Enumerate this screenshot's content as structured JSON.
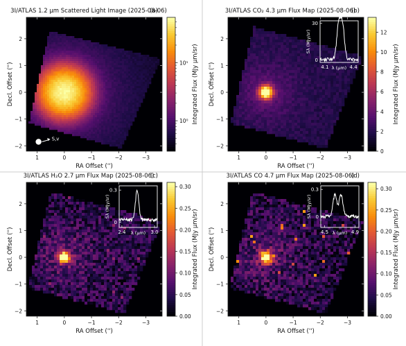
{
  "figure": {
    "panels": [
      {
        "title": "3I/ATLAS 1.2 μm Scattered Light Image (2025-08-06)",
        "tag": "(a)",
        "xlabel": "RA Offset ('')",
        "ylabel": "Decl. Offset ('')",
        "cbar_label": "Integrated Flux (MJy μm/sr)",
        "cbar_ticks": [
          "10¹",
          "10⁰"
        ],
        "annotation": "S,v",
        "inset": null
      },
      {
        "title": "3I/ATLAS CO₂ 4.3 μm Flux Map (2025-08-06)",
        "tag": "(b)",
        "xlabel": "RA Offset ('')",
        "ylabel": "Decl. Offset ('')",
        "cbar_label": "Integrated Flux (MJy μm/sr)",
        "cbar_ticks": [
          "12",
          "10",
          "8",
          "6",
          "4",
          "2",
          "0"
        ],
        "inset": {
          "xlabel": "λ (μm)",
          "ylabel": "Sλ (MJy/sr)",
          "xticks": [
            "4.1",
            "4.4"
          ],
          "yticks": [
            "30",
            "0"
          ]
        }
      },
      {
        "title": "3I/ATLAS H₂O 2.7 μm Flux Map (2025-08-06)",
        "tag": "(c)",
        "xlabel": "RA Offset ('')",
        "ylabel": "Decl. Offset ('')",
        "cbar_label": "Integrated Flux (MJy μm/sr)",
        "cbar_ticks": [
          "0.30",
          "0.25",
          "0.20",
          "0.15",
          "0.10",
          "0.05",
          "0.00"
        ],
        "inset": {
          "xlabel": "λ (μm)",
          "ylabel": "Sλ (MJy/sr)",
          "xticks": [
            "2.4",
            "3.0"
          ],
          "yticks": [
            "0.3",
            "0"
          ]
        }
      },
      {
        "title": "3I/ATLAS CO 4.7 μm Flux Map (2025-08-06)",
        "tag": "(d)",
        "xlabel": "RA Offset ('')",
        "ylabel": "Decl. Offset ('')",
        "cbar_label": "Integrated Flux (MJy μm/sr)",
        "cbar_ticks": [
          "0.30",
          "0.25",
          "0.20",
          "0.15",
          "0.10",
          "0.05",
          "0.00"
        ],
        "inset": {
          "xlabel": "λ (μm)",
          "ylabel": "Sλ (MJy/sr)",
          "xticks": [
            "4.5",
            "4.9"
          ],
          "yticks": [
            "0.3",
            "0"
          ]
        }
      }
    ]
  },
  "chart_data": [
    {
      "type": "heatmap",
      "title": "3I/ATLAS 1.2 μm Scattered Light Image (2025-08-06)",
      "xlabel": "RA Offset ('')",
      "ylabel": "Decl. Offset ('')",
      "x_ticks": [
        1,
        0,
        -1,
        -2,
        -3
      ],
      "y_ticks": [
        2,
        1,
        0,
        -1,
        -2
      ],
      "xlim": [
        1.4,
        -3.6
      ],
      "ylim": [
        -2.2,
        2.8
      ],
      "colorbar": {
        "label": "Integrated Flux (MJy μm/sr)",
        "scale": "log",
        "range": [
          0.3,
          60
        ],
        "ticks": [
          1,
          10
        ]
      },
      "colormap": "inferno",
      "peak_location": [
        0,
        0
      ],
      "footprint_corners": [
        [
          0.55,
          2.3
        ],
        [
          -3.55,
          1.25
        ],
        [
          -2.1,
          -2.1
        ],
        [
          1.3,
          -1.15
        ]
      ],
      "falloff_scale": 0.45,
      "noise": 0.04
    },
    {
      "type": "heatmap",
      "title": "3I/ATLAS CO₂ 4.3 μm Flux Map (2025-08-06)",
      "xlabel": "RA Offset ('')",
      "ylabel": "Decl. Offset ('')",
      "x_ticks": [
        1,
        0,
        -1,
        -2,
        -3
      ],
      "y_ticks": [
        2,
        1,
        0,
        -1,
        -2
      ],
      "xlim": [
        1.4,
        -3.6
      ],
      "ylim": [
        -2.2,
        2.8
      ],
      "colorbar": {
        "label": "Integrated Flux (MJy μm/sr)",
        "scale": "linear",
        "range": [
          0,
          13.5
        ],
        "ticks": [
          0,
          2,
          4,
          6,
          8,
          10,
          12
        ]
      },
      "colormap": "inferno",
      "peak_location": [
        0,
        0
      ],
      "footprint_corners": [
        [
          0.45,
          2.45
        ],
        [
          -3.55,
          1.35
        ],
        [
          -2.2,
          -2.1
        ],
        [
          1.3,
          -1.15
        ]
      ],
      "falloff_scale": 0.17,
      "noise": 0.08,
      "inset": {
        "type": "line",
        "xlabel": "λ (μm)",
        "ylabel": "Sλ (MJy/sr)",
        "xlim": [
          4.05,
          4.45
        ],
        "ylim": [
          -2,
          32
        ],
        "x_ticks": [
          4.1,
          4.4
        ],
        "y_ticks": [
          0,
          30
        ],
        "profile": "double-peak",
        "peak_centers": [
          4.245,
          4.285
        ],
        "peak_width": 0.02,
        "peak_height": 28,
        "baseline": 0.5
      }
    },
    {
      "type": "heatmap",
      "title": "3I/ATLAS H₂O 2.7 μm Flux Map (2025-08-06)",
      "xlabel": "RA Offset ('')",
      "ylabel": "Decl. Offset ('')",
      "x_ticks": [
        1,
        0,
        -1,
        -2,
        -3
      ],
      "y_ticks": [
        2,
        1,
        0,
        -1,
        -2
      ],
      "xlim": [
        1.4,
        -3.6
      ],
      "ylim": [
        -2.2,
        2.8
      ],
      "colorbar": {
        "label": "Integrated Flux (MJy μm/sr)",
        "scale": "linear",
        "range": [
          0,
          0.31
        ],
        "ticks": [
          0,
          0.05,
          0.1,
          0.15,
          0.2,
          0.25,
          0.3
        ]
      },
      "colormap": "inferno",
      "peak_location": [
        0,
        0
      ],
      "footprint_corners": [
        [
          0.5,
          2.45
        ],
        [
          -3.6,
          1.35
        ],
        [
          -2.2,
          -2.1
        ],
        [
          1.35,
          -1.15
        ]
      ],
      "falloff_scale": 0.14,
      "noise": 0.28,
      "inset": {
        "type": "line",
        "xlabel": "λ (μm)",
        "ylabel": "Sλ (MJy/sr)",
        "xlim": [
          2.35,
          3.05
        ],
        "ylim": [
          -0.05,
          0.34
        ],
        "x_ticks": [
          2.4,
          3.0
        ],
        "y_ticks": [
          0,
          0.3
        ],
        "profile": "single-peak",
        "peak_centers": [
          2.68
        ],
        "peak_width": 0.03,
        "peak_height": 0.28,
        "baseline": 0.02
      }
    },
    {
      "type": "heatmap",
      "title": "3I/ATLAS CO 4.7 μm Flux Map (2025-08-06)",
      "xlabel": "RA Offset ('')",
      "ylabel": "Decl. Offset ('')",
      "x_ticks": [
        1,
        0,
        -1,
        -2,
        -3
      ],
      "y_ticks": [
        2,
        1,
        0,
        -1,
        -2
      ],
      "xlim": [
        1.4,
        -3.6
      ],
      "ylim": [
        -2.2,
        2.8
      ],
      "colorbar": {
        "label": "Integrated Flux (MJy μm/sr)",
        "scale": "linear",
        "range": [
          0,
          0.315
        ],
        "ticks": [
          0,
          0.05,
          0.1,
          0.15,
          0.2,
          0.25,
          0.3
        ]
      },
      "colormap": "inferno",
      "peak_location": [
        0,
        0
      ],
      "footprint_corners": [
        [
          0.5,
          2.45
        ],
        [
          -3.6,
          1.35
        ],
        [
          -2.2,
          -2.1
        ],
        [
          1.35,
          -1.15
        ]
      ],
      "falloff_scale": 0.15,
      "noise": 0.3,
      "inset": {
        "type": "line",
        "xlabel": "λ (μm)",
        "ylabel": "Sλ (MJy/sr)",
        "xlim": [
          4.45,
          4.95
        ],
        "ylim": [
          -0.12,
          0.34
        ],
        "x_ticks": [
          4.5,
          4.9
        ],
        "y_ticks": [
          0,
          0.3
        ],
        "profile": "double-peak",
        "peak_centers": [
          4.635,
          4.715
        ],
        "peak_width": 0.025,
        "peak_height": 0.24,
        "baseline": 0.0
      }
    }
  ]
}
